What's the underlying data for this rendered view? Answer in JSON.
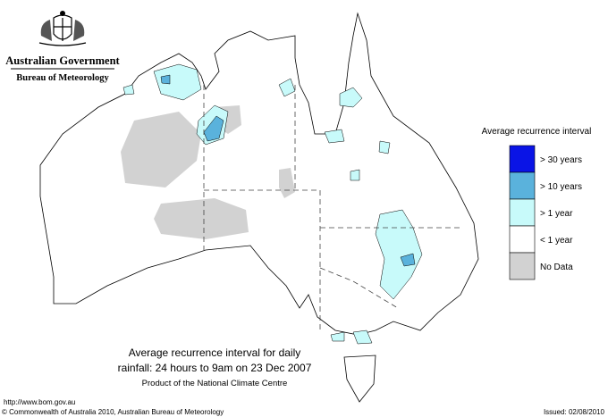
{
  "header": {
    "agency": "Australian Government",
    "bureau": "Bureau of Meteorology"
  },
  "legend": {
    "title": "Average recurrence interval",
    "items": [
      {
        "label": "> 30 years",
        "color": "#0a14e6"
      },
      {
        "label": "> 10 years",
        "color": "#5ab2dc"
      },
      {
        "label": "> 1 year",
        "color": "#c8fafa"
      },
      {
        "label": "< 1 year",
        "color": "#ffffff"
      },
      {
        "label": "No Data",
        "color": "#d2d2d2"
      }
    ]
  },
  "caption": {
    "lines": [
      "Average recurrence interval for daily",
      "rainfall: 24 hours to 9am on 23 Dec 2007"
    ],
    "credit": "Product of the National Climate Centre"
  },
  "footer": {
    "url": "http://www.bom.gov.au",
    "copyright": "© Commonwealth of Australia 2010, Australian Bureau of Meteorology",
    "issued": "Issued: 02/08/2010"
  }
}
